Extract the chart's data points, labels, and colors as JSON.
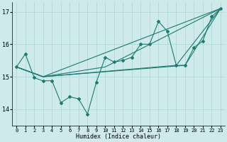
{
  "xlabel": "Humidex (Indice chaleur)",
  "ylabel": "",
  "background_color": "#ceeaea",
  "grid_color": "#b0d8d8",
  "line_color": "#1e7a72",
  "xlim": [
    -0.5,
    23.5
  ],
  "ylim": [
    13.5,
    17.3
  ],
  "yticks": [
    14,
    15,
    16,
    17
  ],
  "xticks": [
    0,
    1,
    2,
    3,
    4,
    5,
    6,
    7,
    8,
    9,
    10,
    11,
    12,
    13,
    14,
    15,
    16,
    17,
    18,
    19,
    20,
    21,
    22,
    23
  ],
  "main_series": {
    "x": [
      0,
      1,
      2,
      3,
      4,
      5,
      6,
      7,
      8,
      9,
      10,
      11,
      12,
      13,
      14,
      15,
      16,
      17,
      18,
      19,
      20,
      21,
      22,
      23
    ],
    "y": [
      15.3,
      15.7,
      14.97,
      14.87,
      14.88,
      14.2,
      14.38,
      14.32,
      13.85,
      14.83,
      15.6,
      15.45,
      15.5,
      15.6,
      16.0,
      16.0,
      16.7,
      16.4,
      15.35,
      15.35,
      15.9,
      16.1,
      16.85,
      17.1
    ]
  },
  "fan_lines": [
    {
      "x": [
        0,
        3,
        23
      ],
      "y": [
        15.3,
        15.0,
        17.1
      ]
    },
    {
      "x": [
        0,
        3,
        19,
        23
      ],
      "y": [
        15.3,
        15.0,
        15.35,
        17.1
      ]
    },
    {
      "x": [
        0,
        3,
        18,
        23
      ],
      "y": [
        15.3,
        15.0,
        15.35,
        17.1
      ]
    },
    {
      "x": [
        0,
        3,
        10,
        23
      ],
      "y": [
        15.3,
        15.0,
        15.3,
        17.1
      ]
    }
  ]
}
